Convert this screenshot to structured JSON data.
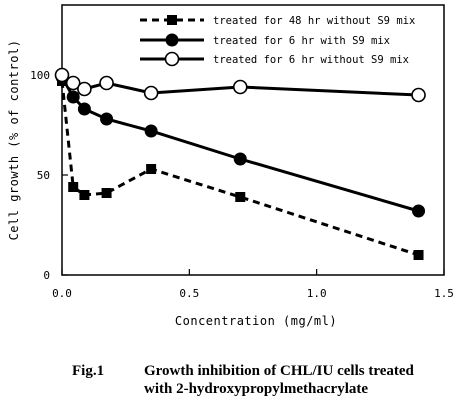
{
  "chart_data": {
    "type": "line",
    "xlabel": "Concentration (mg/ml)",
    "ylabel": "Cell growth (% of control)",
    "xlim": [
      0,
      1.5
    ],
    "ylim": [
      0,
      135
    ],
    "x_ticks": [
      {
        "value": 0,
        "label": "0.0"
      },
      {
        "value": 0.5,
        "label": "0.5"
      },
      {
        "value": 1.0,
        "label": "1.0"
      },
      {
        "value": 1.5,
        "label": "1.5"
      }
    ],
    "y_ticks": [
      {
        "value": 0,
        "label": "0"
      },
      {
        "value": 50,
        "label": "50"
      },
      {
        "value": 100,
        "label": "100"
      }
    ],
    "grid": false,
    "legend_position": "top-right",
    "series": [
      {
        "name": "treated for 48 hr without S9 mix",
        "marker": "filled-square",
        "line": "dashed",
        "x": [
          0,
          0.044,
          0.088,
          0.175,
          0.35,
          0.7,
          1.4
        ],
        "y": [
          97,
          44,
          40,
          41,
          53,
          39,
          10
        ]
      },
      {
        "name": "treated for 6 hr with S9 mix",
        "marker": "filled-circle",
        "line": "solid",
        "x": [
          0,
          0.044,
          0.088,
          0.175,
          0.35,
          0.7,
          1.4
        ],
        "y": [
          99,
          89,
          83,
          78,
          72,
          58,
          32
        ]
      },
      {
        "name": "treated for 6 hr without S9 mix",
        "marker": "open-circle",
        "line": "solid",
        "x": [
          0,
          0.044,
          0.088,
          0.175,
          0.35,
          0.7,
          1.4
        ],
        "y": [
          100,
          96,
          93,
          96,
          91,
          94,
          90
        ]
      }
    ]
  },
  "caption": {
    "number": "Fig.1",
    "line1": "Growth inhibition of CHL/IU cells treated",
    "line2": "with 2-hydroxypropylmethacrylate"
  }
}
